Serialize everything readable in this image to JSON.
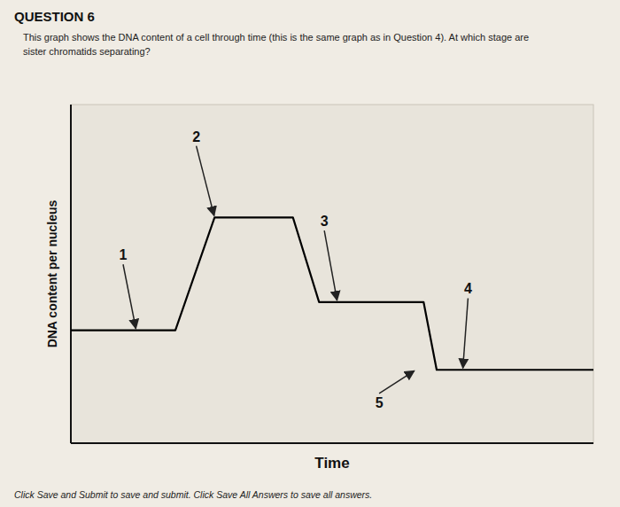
{
  "chart_data": {
    "type": "line",
    "title": "QUESTION 6",
    "subtitle": "This graph shows the DNA content of a cell through time (this is the same graph as in Question 4). At which stage are\nsister chromatids separating?",
    "footer": "Click Save and Submit to save and submit. Click Save All Answers to save all answers.",
    "x_label": "Time",
    "y_label": "DNA content per nucleus",
    "x": [
      0,
      2,
      2,
      4,
      5.5,
      7,
      7.5,
      8.5,
      9.5,
      10.5,
      12,
      13.5,
      14,
      14.5,
      15.5,
      17,
      20
    ],
    "values": [
      2,
      2,
      2,
      2,
      4,
      4,
      4,
      4,
      2.5,
      2.5,
      2.5,
      2.5,
      1.3,
      1.3,
      1.3,
      1.3,
      1.3
    ],
    "color": "#000000",
    "xlim": [
      0,
      20
    ],
    "ylim": [
      0,
      6
    ],
    "tick_labels": false,
    "grid": false,
    "annotations": [
      {
        "text": "1",
        "x": 2.5,
        "y": 2.0,
        "text_x": 2.0,
        "text_y": 3.2
      },
      {
        "text": "2",
        "x": 5.5,
        "y": 4.0,
        "text_x": 4.8,
        "text_y": 5.3
      },
      {
        "text": "3",
        "x": 10.2,
        "y": 2.5,
        "text_x": 9.7,
        "text_y": 3.8
      },
      {
        "text": "4",
        "x": 15.0,
        "y": 1.3,
        "text_x": 15.2,
        "text_y": 2.6
      },
      {
        "text": "5",
        "x": 13.2,
        "y": 1.3,
        "text_x": 11.8,
        "text_y": 0.85
      }
    ]
  }
}
